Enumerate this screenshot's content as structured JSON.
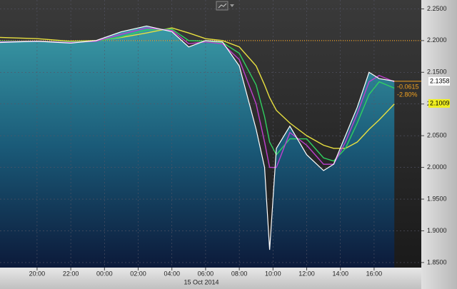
{
  "chart_data": {
    "type": "line",
    "xlabel": "15 Oct 2014",
    "x": [
      17.8,
      20,
      22,
      23.5,
      25,
      26.5,
      28,
      29,
      30,
      31,
      32,
      33,
      33.5,
      33.8,
      34.2,
      35,
      36,
      37,
      37.6,
      38.3,
      39,
      39.7,
      40.3,
      41.2
    ],
    "xlim": [
      17.8,
      42.8
    ],
    "xticks": [
      {
        "value": 20,
        "label": "20:00"
      },
      {
        "value": 22,
        "label": "22:00"
      },
      {
        "value": 24,
        "label": "00:00"
      },
      {
        "value": 26,
        "label": "02:00"
      },
      {
        "value": 28,
        "label": "04:00"
      },
      {
        "value": 30,
        "label": "06:00"
      },
      {
        "value": 32,
        "label": "08:00"
      },
      {
        "value": 34,
        "label": "10:00"
      },
      {
        "value": 36,
        "label": "12:00"
      },
      {
        "value": 38,
        "label": "14:00"
      },
      {
        "value": 40,
        "label": "16:00"
      }
    ],
    "ylim": [
      1.842,
      2.264
    ],
    "yticks": [
      {
        "value": 1.85,
        "label": "1.8500"
      },
      {
        "value": 1.9,
        "label": "1.9000"
      },
      {
        "value": 1.95,
        "label": "1.9500"
      },
      {
        "value": 2.0,
        "label": "2.0000"
      },
      {
        "value": 2.05,
        "label": "2.0500"
      },
      {
        "value": 2.1,
        "label": "2.1000"
      },
      {
        "value": 2.15,
        "label": "2.1500"
      },
      {
        "value": 2.2,
        "label": "2.2000"
      },
      {
        "value": 2.25,
        "label": "2.2500"
      }
    ],
    "grid": true,
    "reference_line": {
      "value": 2.2,
      "color": "#f0a020"
    },
    "series": [
      {
        "color": "#ffffff",
        "values": [
          2.197,
          2.199,
          2.196,
          2.2,
          2.214,
          2.223,
          2.214,
          2.19,
          2.2,
          2.198,
          2.16,
          2.06,
          2.0,
          1.87,
          2.03,
          2.065,
          2.02,
          1.995,
          2.005,
          2.05,
          2.095,
          2.15,
          2.14,
          2.136
        ]
      },
      {
        "color": "#c040d0",
        "values": [
          2.198,
          2.199,
          2.197,
          2.199,
          2.21,
          2.22,
          2.216,
          2.195,
          2.198,
          2.195,
          2.17,
          2.1,
          2.04,
          2.0,
          2.0,
          2.055,
          2.035,
          2.005,
          2.005,
          2.04,
          2.085,
          2.135,
          2.145,
          2.135
        ]
      },
      {
        "color": "#30d060",
        "values": [
          2.199,
          2.199,
          2.198,
          2.199,
          2.206,
          2.217,
          2.218,
          2.2,
          2.199,
          2.197,
          2.18,
          2.13,
          2.08,
          2.04,
          2.02,
          2.045,
          2.045,
          2.015,
          2.01,
          2.03,
          2.07,
          2.115,
          2.135,
          2.125
        ]
      },
      {
        "color": "#e8e040",
        "values": [
          2.205,
          2.203,
          2.199,
          2.2,
          2.205,
          2.212,
          2.22,
          2.212,
          2.203,
          2.2,
          2.19,
          2.16,
          2.13,
          2.11,
          2.09,
          2.07,
          2.05,
          2.035,
          2.03,
          2.03,
          2.04,
          2.06,
          2.075,
          2.1
        ]
      }
    ],
    "last_labels": [
      {
        "value": 2.1358,
        "label": "2.1358",
        "color": "#ffffff"
      },
      {
        "value": 2.1009,
        "label": "2.1009",
        "color": "#f0f020"
      }
    ],
    "change_labels": [
      "-0.0615",
      "-2.80%"
    ]
  }
}
